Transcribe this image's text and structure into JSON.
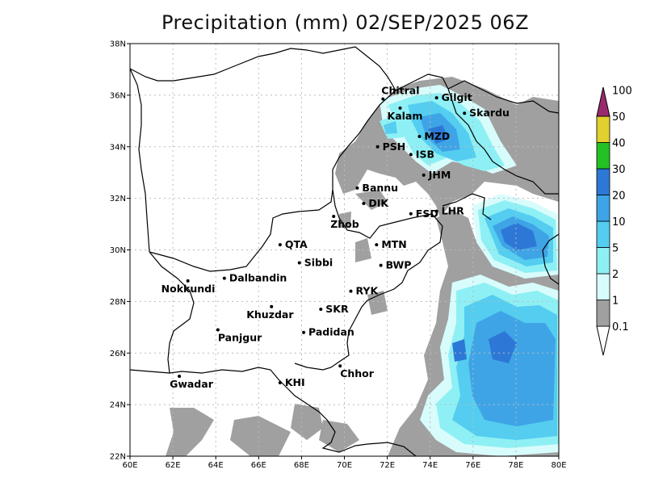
{
  "title": "Precipitation (mm) 02/SEP/2025 06Z",
  "lon_ticks": [
    "60E",
    "62E",
    "64E",
    "66E",
    "68E",
    "70E",
    "72E",
    "74E",
    "76E",
    "78E",
    "80E"
  ],
  "lat_ticks": [
    "22N",
    "24N",
    "26N",
    "28N",
    "30N",
    "32N",
    "34N",
    "36N",
    "38N"
  ],
  "colorbar": {
    "labels": [
      "0.1",
      "1",
      "2",
      "5",
      "10",
      "20",
      "30",
      "40",
      "50",
      "100"
    ],
    "colors": [
      "#a0a0a0",
      "#d8fcfc",
      "#8ef0f4",
      "#54cdf0",
      "#3ea4e6",
      "#2d78d6",
      "#24c024",
      "#e2d02e",
      "#f04646",
      "#9a2a6e"
    ]
  },
  "cities": [
    {
      "name": "Chitral",
      "lon": 71.8,
      "lat": 35.85
    },
    {
      "name": "Gilgit",
      "lon": 74.3,
      "lat": 35.9
    },
    {
      "name": "Kalam",
      "lon": 72.6,
      "lat": 35.5
    },
    {
      "name": "Skardu",
      "lon": 75.6,
      "lat": 35.3
    },
    {
      "name": "MZD",
      "lon": 73.5,
      "lat": 34.4
    },
    {
      "name": "PSH",
      "lon": 71.55,
      "lat": 34.0
    },
    {
      "name": "ISB",
      "lon": 73.1,
      "lat": 33.7
    },
    {
      "name": "JHM",
      "lon": 73.7,
      "lat": 32.9
    },
    {
      "name": "Bannu",
      "lon": 70.6,
      "lat": 32.4
    },
    {
      "name": "DIK",
      "lon": 70.9,
      "lat": 31.8
    },
    {
      "name": "FSD",
      "lon": 73.1,
      "lat": 31.4
    },
    {
      "name": "LHR",
      "lon": 74.3,
      "lat": 31.5
    },
    {
      "name": "Zhob",
      "lon": 69.5,
      "lat": 31.3
    },
    {
      "name": "QTA",
      "lon": 67.0,
      "lat": 30.2
    },
    {
      "name": "MTN",
      "lon": 71.5,
      "lat": 30.2
    },
    {
      "name": "Sibbi",
      "lon": 67.9,
      "lat": 29.5
    },
    {
      "name": "BWP",
      "lon": 71.7,
      "lat": 29.4
    },
    {
      "name": "Dalbandin",
      "lon": 64.4,
      "lat": 28.9
    },
    {
      "name": "Nokkundi",
      "lon": 62.7,
      "lat": 28.8
    },
    {
      "name": "RYK",
      "lon": 70.3,
      "lat": 28.4
    },
    {
      "name": "Khuzdar",
      "lon": 66.6,
      "lat": 27.8
    },
    {
      "name": "SKR",
      "lon": 68.9,
      "lat": 27.7
    },
    {
      "name": "Panjgur",
      "lon": 64.1,
      "lat": 26.9
    },
    {
      "name": "Padidan",
      "lon": 68.1,
      "lat": 26.8
    },
    {
      "name": "Chhor",
      "lon": 69.8,
      "lat": 25.5
    },
    {
      "name": "KHI",
      "lon": 67.0,
      "lat": 24.85
    },
    {
      "name": "Gwadar",
      "lon": 62.3,
      "lat": 25.1
    }
  ]
}
